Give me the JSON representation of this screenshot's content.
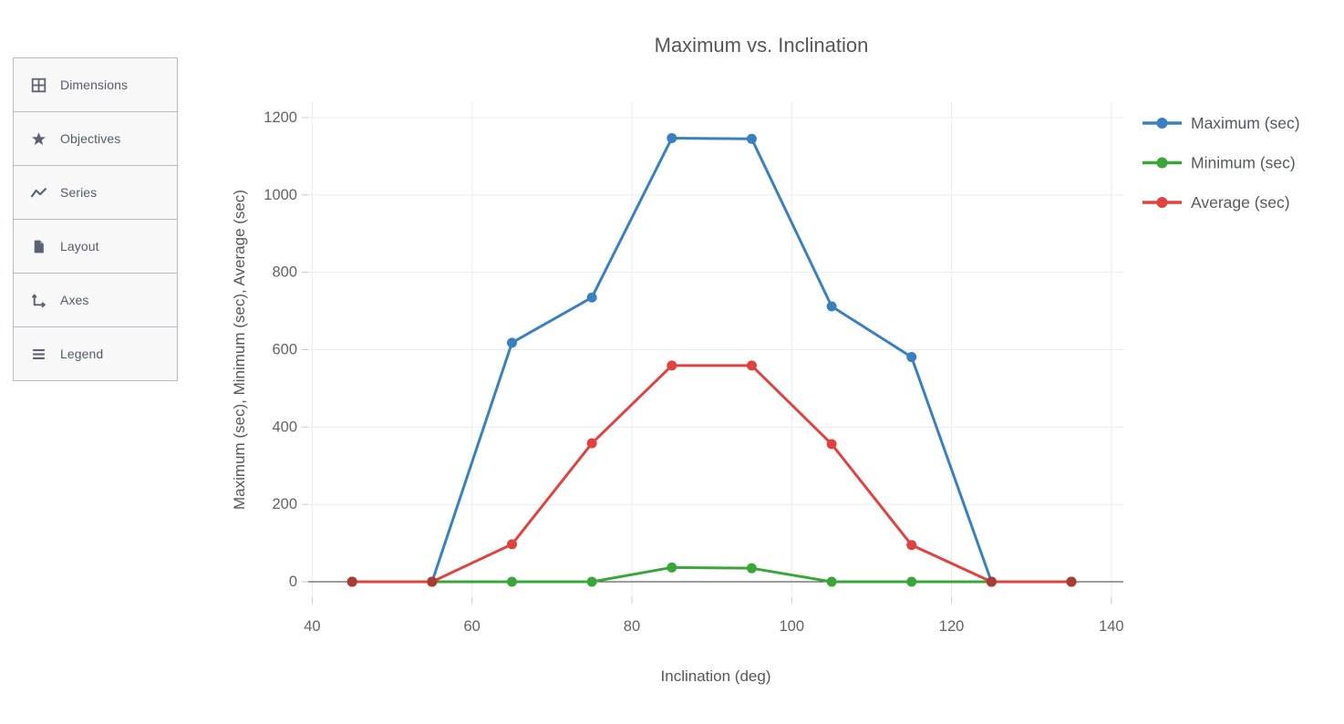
{
  "sidebar": {
    "items": [
      {
        "label": "Dimensions",
        "icon": "grid-icon"
      },
      {
        "label": "Objectives",
        "icon": "star-icon"
      },
      {
        "label": "Series",
        "icon": "zigzag-line-icon"
      },
      {
        "label": "Layout",
        "icon": "page-icon"
      },
      {
        "label": "Axes",
        "icon": "axes-icon"
      },
      {
        "label": "Legend",
        "icon": "list-lines-icon"
      }
    ]
  },
  "chart_data": {
    "type": "line",
    "title": "Maximum vs. Inclination",
    "xlabel": "Inclination (deg)",
    "ylabel": "Maximum (sec), Minimum (sec), Average (sec)",
    "x": [
      45,
      55,
      65,
      75,
      85,
      95,
      105,
      115,
      125,
      135
    ],
    "series": [
      {
        "name": "Maximum (sec)",
        "color": "#3a80c1",
        "values": [
          0,
          0,
          618,
          735,
          1147,
          1145,
          712,
          581,
          0,
          0
        ]
      },
      {
        "name": "Minimum (sec)",
        "color": "#3aa53a",
        "values": [
          0,
          0,
          0,
          0,
          37,
          35,
          0,
          0,
          0,
          0
        ]
      },
      {
        "name": "Average (sec)",
        "color": "#df4340",
        "values": [
          0,
          0,
          97,
          358,
          559,
          559,
          356,
          95,
          0,
          0
        ]
      }
    ],
    "xticks": [
      40,
      60,
      80,
      100,
      120,
      140
    ],
    "yticks": [
      0,
      200,
      400,
      600,
      800,
      1000,
      1200
    ],
    "xlim": [
      39.5,
      141.5
    ],
    "ylim": [
      -40,
      1240
    ],
    "grid": true,
    "legend_position": "right",
    "marker_style": "circle",
    "overlap_marker_color": "#a93b32",
    "zero_line_color": "#3a3a3a",
    "grid_color": "#ececec",
    "tick_color": "#c9c9c9",
    "text_color": "#565656",
    "tick_label_color": "#636363"
  }
}
